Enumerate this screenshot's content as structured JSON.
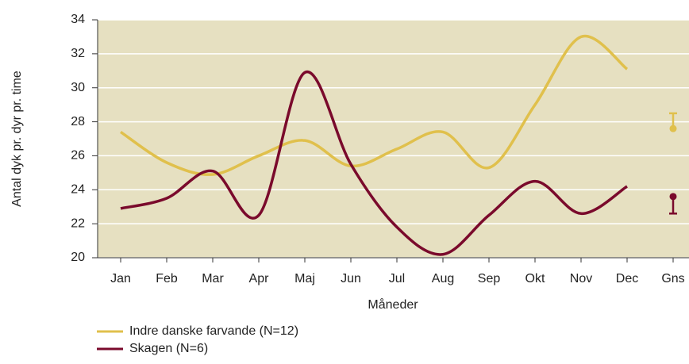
{
  "chart_data": {
    "type": "line",
    "y_label": "Antal dyk pr. dyr pr. time",
    "x_label": "Måneder",
    "categories": [
      "Jan",
      "Feb",
      "Mar",
      "Apr",
      "Maj",
      "Jun",
      "Jul",
      "Aug",
      "Sep",
      "Okt",
      "Nov",
      "Dec",
      "Gns"
    ],
    "series": [
      {
        "name": "Indre danske farvande (N=12)",
        "color": "#e0c04c",
        "values": [
          27.4,
          25.6,
          24.9,
          26.0,
          26.9,
          25.4,
          26.4,
          27.4,
          25.3,
          29.0,
          33.0,
          31.1,
          null
        ],
        "mean": 27.6,
        "error": 0.9,
        "error_direction": "up"
      },
      {
        "name": "Skagen (N=6)",
        "color": "#7a0a2c",
        "values": [
          22.9,
          23.5,
          25.1,
          22.5,
          30.9,
          25.5,
          21.8,
          20.2,
          22.5,
          24.5,
          22.6,
          24.2,
          null
        ],
        "mean": 23.6,
        "error": 1.0,
        "error_direction": "down"
      }
    ],
    "ylim": [
      20,
      34
    ],
    "yticks": [
      20,
      22,
      24,
      26,
      28,
      30,
      32,
      34
    ],
    "grid": true,
    "smooth": true
  }
}
